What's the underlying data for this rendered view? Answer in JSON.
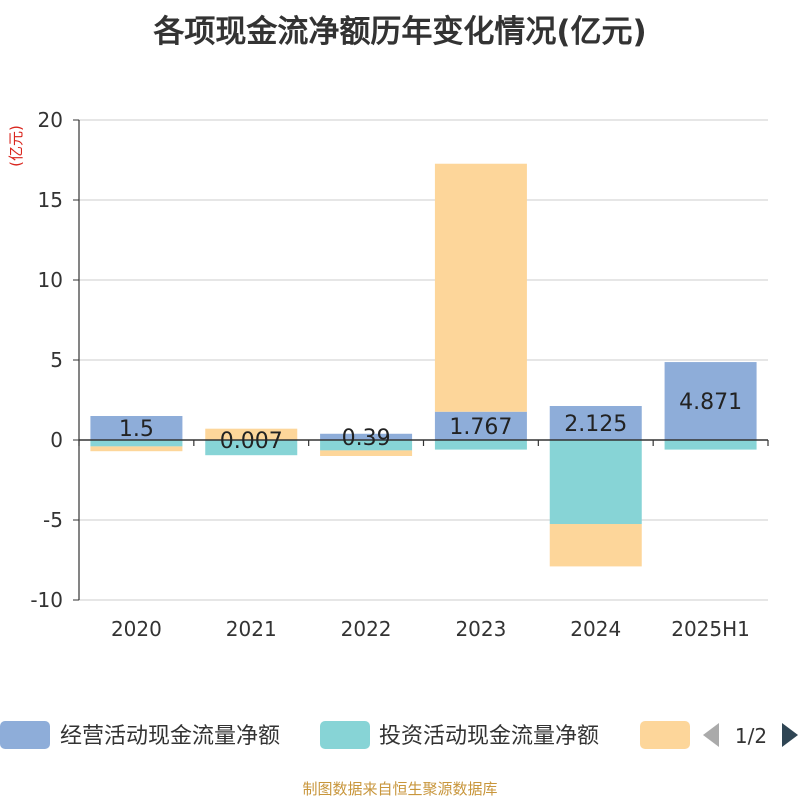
{
  "title": "各项现金流净额历年变化情况(亿元)",
  "footer": "制图数据来自恒生聚源数据库",
  "colors": {
    "operating": "#8eadd9",
    "investing": "#87d4d6",
    "financing": "#fdd69a",
    "unit_label": "#d9251d",
    "axis": "#333333",
    "grid": "#cccccc",
    "pager_prev": "#aaaaaa",
    "pager_next": "#2f4554"
  },
  "chart_data": {
    "type": "bar",
    "stacked": true,
    "categories": [
      "2020",
      "2021",
      "2022",
      "2023",
      "2024",
      "2025H1"
    ],
    "series": [
      {
        "name": "经营活动现金流量净额",
        "color_key": "operating",
        "values": [
          1.5,
          0.007,
          0.39,
          1.767,
          2.125,
          4.871
        ],
        "labels": [
          "1.5",
          "0.007",
          "0.39",
          "1.767",
          "2.125",
          "4.871"
        ]
      },
      {
        "name": "投资活动现金流量净额",
        "color_key": "investing",
        "values": [
          -0.4,
          -0.95,
          -0.65,
          -0.6,
          -5.25,
          -0.6
        ]
      },
      {
        "name": "",
        "color_key": "financing",
        "values": [
          -0.3,
          0.7,
          -0.35,
          15.5,
          -2.65,
          0.0
        ]
      }
    ],
    "ylabel": "(亿元)",
    "ylim": [
      -10,
      20
    ],
    "yticks": [
      20,
      15,
      10,
      5,
      0,
      -5,
      -10
    ],
    "grid": true,
    "legend": {
      "position": "bottom",
      "page": "1/2"
    }
  }
}
